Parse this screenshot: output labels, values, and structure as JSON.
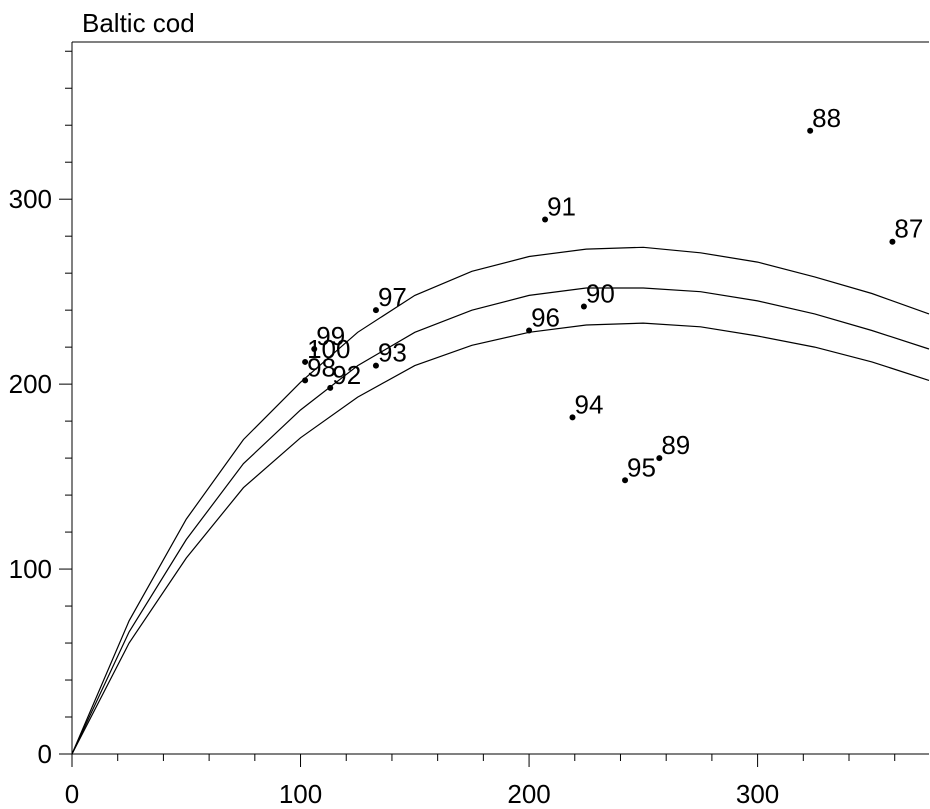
{
  "chart_data": {
    "type": "scatter",
    "title": "Baltic cod",
    "xlabel": "",
    "ylabel": "",
    "xlim": [
      0,
      375
    ],
    "ylim": [
      0,
      385
    ],
    "x_ticks": [
      0,
      100,
      200,
      300
    ],
    "y_ticks": [
      0,
      100,
      200,
      300
    ],
    "x_minor_step": 20,
    "y_minor_step": 20,
    "grid": false,
    "points": [
      {
        "label": "87",
        "x": 359,
        "y": 277
      },
      {
        "label": "88",
        "x": 323,
        "y": 337
      },
      {
        "label": "89",
        "x": 257,
        "y": 160
      },
      {
        "label": "90",
        "x": 224,
        "y": 242
      },
      {
        "label": "91",
        "x": 207,
        "y": 289
      },
      {
        "label": "92",
        "x": 113,
        "y": 198
      },
      {
        "label": "93",
        "x": 133,
        "y": 210
      },
      {
        "label": "94",
        "x": 219,
        "y": 182
      },
      {
        "label": "95",
        "x": 242,
        "y": 148
      },
      {
        "label": "96",
        "x": 200,
        "y": 229
      },
      {
        "label": "97",
        "x": 133,
        "y": 240
      },
      {
        "label": "98",
        "x": 102,
        "y": 202
      },
      {
        "label": "99",
        "x": 106,
        "y": 219
      },
      {
        "label": "100",
        "x": 102,
        "y": 212
      }
    ],
    "curves": [
      {
        "x": [
          0,
          25,
          50,
          75,
          100,
          125,
          150,
          175,
          200,
          225,
          250,
          275,
          300,
          325,
          350,
          375
        ],
        "y": [
          0,
          72,
          127,
          170,
          201,
          228,
          248,
          261,
          269,
          273,
          274,
          271,
          266,
          258,
          249,
          238
        ]
      },
      {
        "x": [
          0,
          25,
          50,
          75,
          100,
          125,
          150,
          175,
          200,
          225,
          250,
          275,
          300,
          325,
          350,
          375
        ],
        "y": [
          0,
          66,
          116,
          157,
          186,
          210,
          228,
          240,
          248,
          252,
          252,
          250,
          245,
          238,
          229,
          219
        ]
      },
      {
        "x": [
          0,
          25,
          50,
          75,
          100,
          125,
          150,
          175,
          200,
          225,
          250,
          275,
          300,
          325,
          350,
          375
        ],
        "y": [
          0,
          60,
          106,
          144,
          171,
          193,
          210,
          221,
          228,
          232,
          233,
          231,
          226,
          220,
          212,
          202
        ]
      }
    ]
  }
}
